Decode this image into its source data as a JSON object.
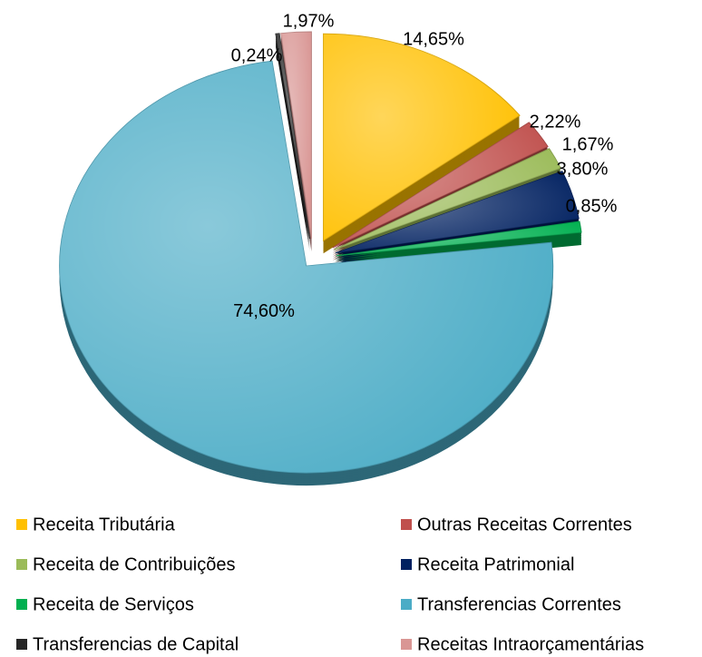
{
  "chart_data": {
    "type": "pie",
    "categories": [
      "Receita Tributária",
      "Outras Receitas Correntes",
      "Receita de Contribuições",
      "Receita Patrimonial",
      "Receita de Serviços",
      "Transferencias Correntes",
      "Transferencias de Capital",
      "Receitas Intraorçamentárias"
    ],
    "values": [
      14.65,
      2.22,
      1.67,
      3.8,
      0.85,
      74.6,
      0.24,
      1.97
    ],
    "value_labels": [
      "14,65%",
      "2,22%",
      "1,67%",
      "3,80%",
      "0,85%",
      "74,60%",
      "0,24%",
      "1,97%"
    ],
    "colors": [
      "#ffc000",
      "#c0504d",
      "#9bbb59",
      "#002060",
      "#00b050",
      "#4bacc6",
      "#262626",
      "#d99694"
    ],
    "legend": "bottom"
  }
}
